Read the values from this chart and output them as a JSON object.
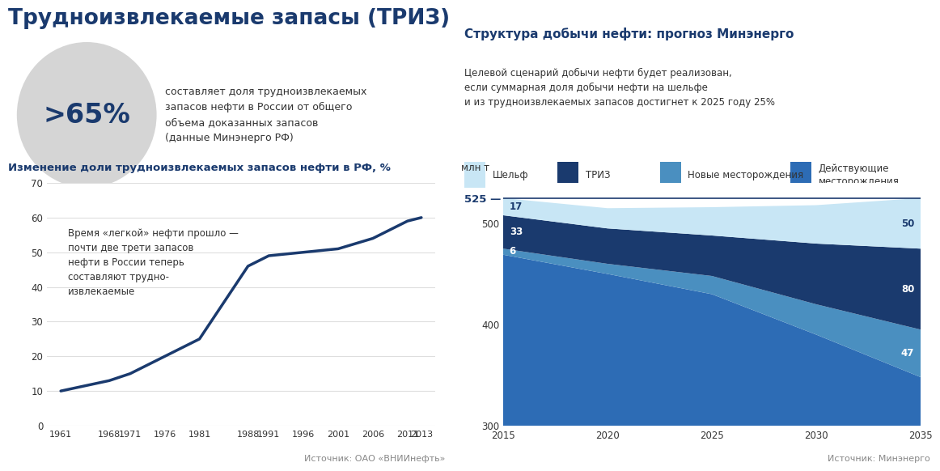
{
  "title": "Трудноизвлекаемые запасы (ТРИЗ)",
  "big_percent": ">65%",
  "big_percent_desc": "составляет доля трудноизвлекаемых\nзапасов нефти в России от общего\nобъема доказанных запасов\n(данные Минэнерго РФ)",
  "left_chart_title": "Изменение доли трудноизвлекаемых запасов нефти в РФ, %",
  "left_chart_annotation": "Время «легкой» нефти прошло —\nпочти две трети запасов\nнефти в России теперь\nсоставляют трудно-\nизвлекаемые",
  "left_source": "Источник: ОАО «ВНИИнефть»",
  "line_years": [
    1961,
    1968,
    1971,
    1976,
    1981,
    1988,
    1991,
    1996,
    2001,
    2006,
    2011,
    2013
  ],
  "line_values": [
    10,
    13,
    15,
    20,
    25,
    46,
    49,
    50,
    51,
    54,
    59,
    60
  ],
  "line_color": "#1a3a6e",
  "line_ylim": [
    0,
    70
  ],
  "line_yticks": [
    0,
    10,
    20,
    30,
    40,
    50,
    60,
    70
  ],
  "right_chart_title": "Структура добычи нефти: прогноз Минэнерго",
  "right_chart_subtitle": "Целевой сценарий добычи нефти будет реализован,\nесли суммарная доля добычи нефти на шельфе\nи из трудноизвлекаемых запасов достигнет к 2025 году 25%",
  "right_source": "Источник: Минэнерго",
  "target_label": "525 — целевой сценарий добычи нефти",
  "right_years": [
    2015,
    2020,
    2025,
    2030,
    2035
  ],
  "shelf_values": [
    17,
    20,
    28,
    38,
    50
  ],
  "triz_values": [
    33,
    35,
    40,
    60,
    80
  ],
  "new_fields_values": [
    6,
    10,
    18,
    30,
    47
  ],
  "existing_fields_values": [
    469,
    450,
    430,
    390,
    348
  ],
  "shelf_color": "#c8e6f5",
  "triz_color": "#1a3a6e",
  "new_fields_color": "#4a8fc0",
  "existing_fields_color": "#2d6cb5",
  "right_ylim": [
    300,
    540
  ],
  "right_yticks": [
    300,
    400,
    500
  ],
  "legend_items": [
    "Шельф",
    "ТРИЗ",
    "Новые месторождения",
    "Действующие\nместорождения"
  ],
  "legend_colors": [
    "#c8e6f5",
    "#1a3a6e",
    "#4a8fc0",
    "#2d6cb5"
  ],
  "bg_color": "#ffffff",
  "ellipse_color": "#d5d5d5",
  "title_color": "#1a3a6e",
  "text_color": "#333333",
  "grid_color": "#dedede",
  "ylabel_right": "млн т"
}
